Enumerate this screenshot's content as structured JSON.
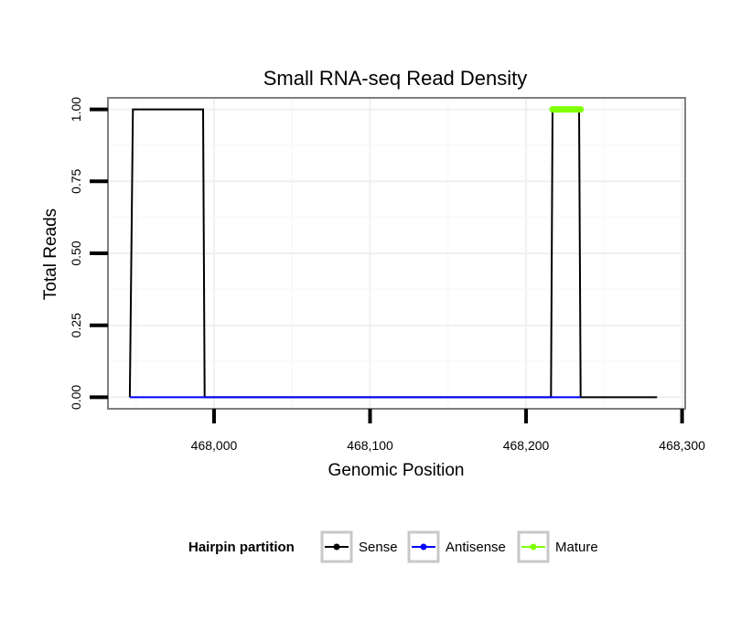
{
  "chart_data": {
    "type": "line",
    "title": "Small RNA-seq Read Density",
    "xlabel": "Genomic Position",
    "ylabel": "Total Reads",
    "xlim": [
      467932,
      468302
    ],
    "ylim": [
      -0.04,
      1.04
    ],
    "x_ticks": [
      468000,
      468100,
      468200,
      468300
    ],
    "x_tick_labels": [
      "468,000",
      "468,100",
      "468,200",
      "468,300"
    ],
    "y_ticks": [
      0.0,
      0.25,
      0.5,
      0.75,
      1.0
    ],
    "y_tick_labels": [
      "0.00",
      "0.25",
      "0.50",
      "0.75",
      "1.00"
    ],
    "grid": true,
    "legend": {
      "title": "Hairpin partition",
      "position": "bottom",
      "entries": [
        "Sense",
        "Antisense",
        "Mature"
      ]
    },
    "series": [
      {
        "name": "Sense",
        "color": "#000000",
        "x": [
          467946,
          467948,
          467993,
          467994,
          468216,
          468217,
          468234,
          468235,
          468284
        ],
        "values": [
          0,
          1,
          1,
          0,
          0,
          1,
          1,
          0,
          0
        ]
      },
      {
        "name": "Antisense",
        "color": "#0000ff",
        "x": [
          467946,
          467994,
          468216,
          468235
        ],
        "values": [
          0,
          0,
          0,
          0
        ]
      },
      {
        "name": "Mature",
        "color": "#7fff00",
        "x": [
          468217,
          468235
        ],
        "values": [
          1,
          1
        ]
      }
    ]
  }
}
